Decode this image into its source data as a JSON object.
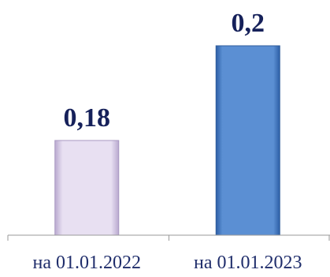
{
  "chart_data": {
    "type": "bar",
    "title": "",
    "xlabel": "",
    "ylabel": "",
    "categories": [
      "на 01.01.2022",
      "на 01.01.2023"
    ],
    "values": [
      0.18,
      0.2
    ],
    "data_labels": [
      "0,18",
      "0,2"
    ],
    "colors": [
      "#ddd3ec",
      "#4f84c9"
    ],
    "ylim": [
      0.16,
      0.2
    ],
    "grid": false,
    "legend": "none"
  }
}
